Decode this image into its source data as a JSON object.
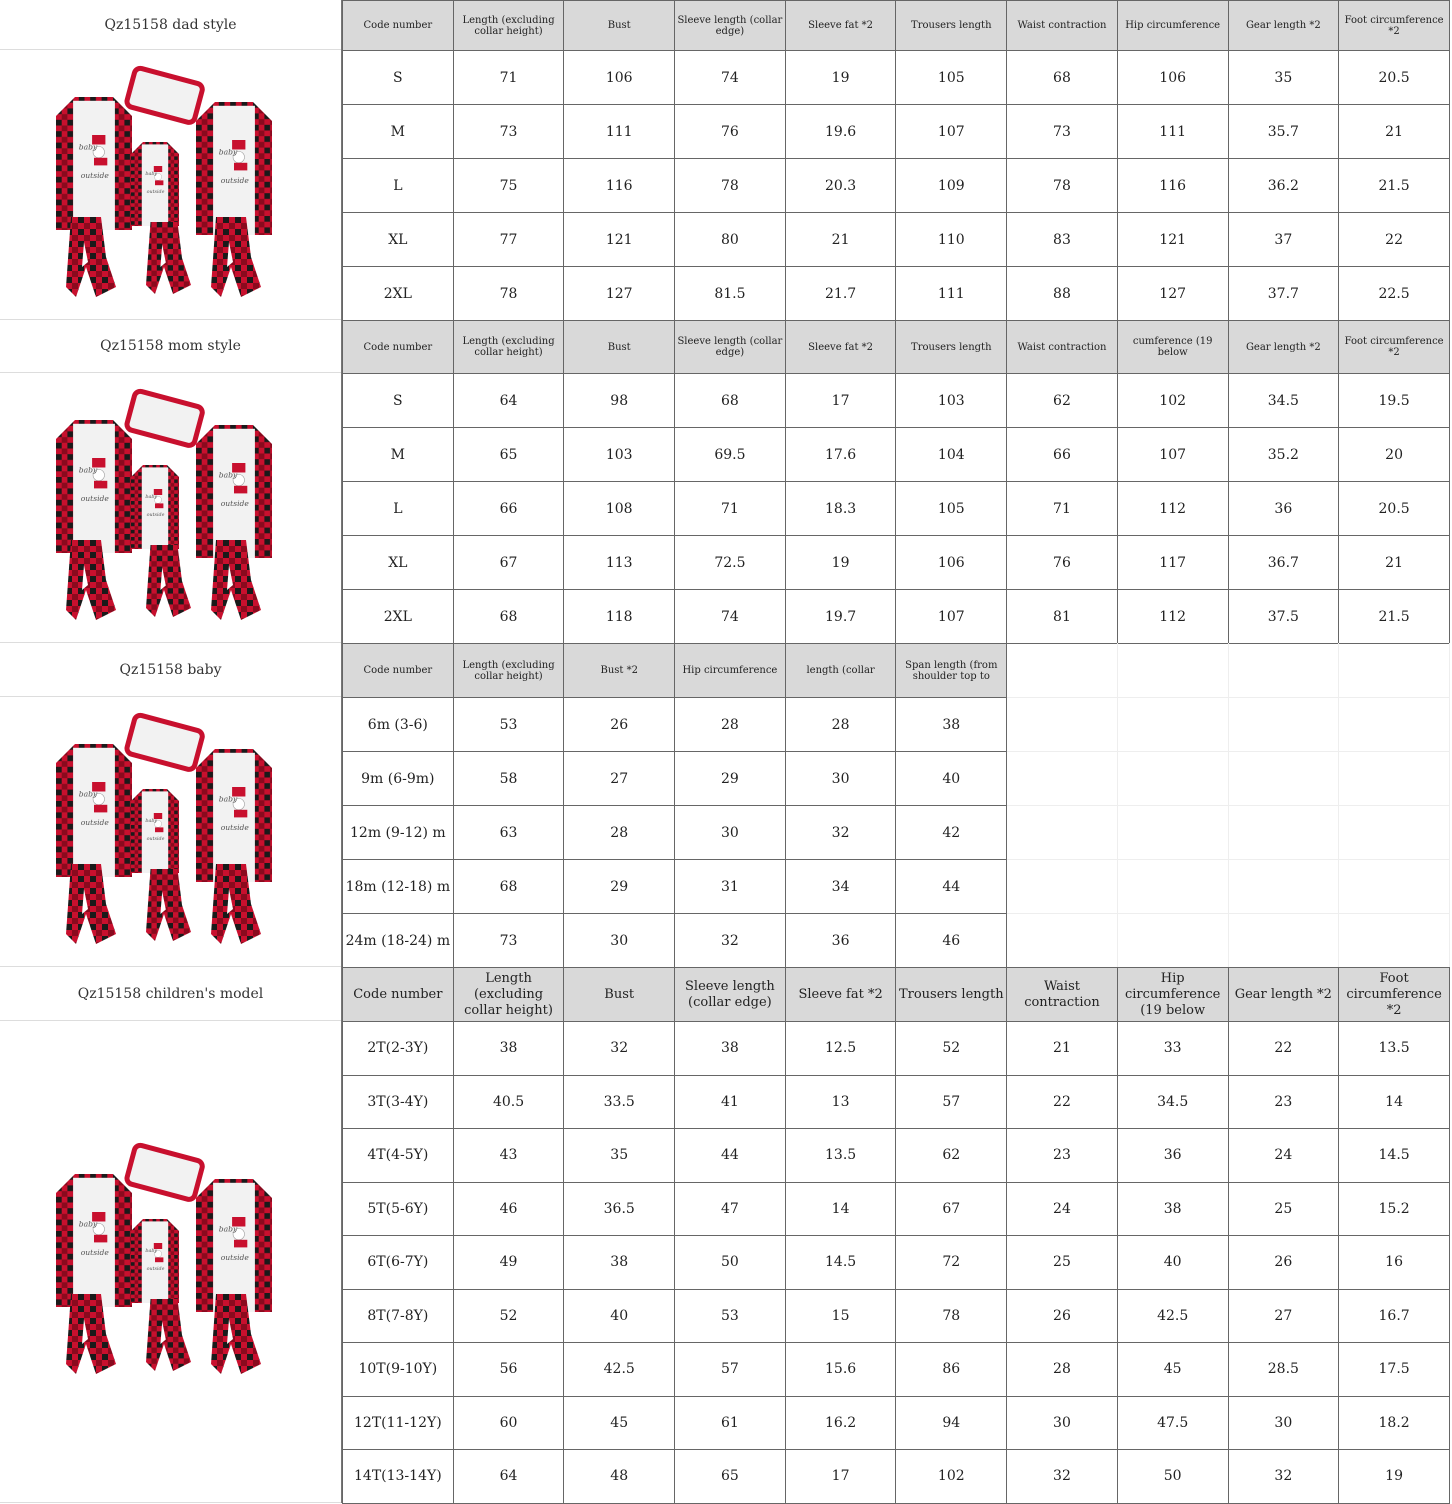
{
  "colors": {
    "header_bg": "#d9d9d9",
    "plaid_red": "#c8102e",
    "plaid_black": "#1a1a1a"
  },
  "sections": [
    {
      "title": "Qz15158 dad style",
      "image": "family-pajamas-image",
      "headers": [
        "Code number",
        "Length (excluding collar height)",
        "Bust",
        "Sleeve length (collar edge)",
        "Sleeve fat *2",
        "Trousers length",
        "Waist contraction",
        "Hip circumference",
        "Gear length *2",
        "Foot circumference *2"
      ],
      "rows": [
        [
          "S",
          "71",
          "106",
          "74",
          "19",
          "105",
          "68",
          "106",
          "35",
          "20.5"
        ],
        [
          "M",
          "73",
          "111",
          "76",
          "19.6",
          "107",
          "73",
          "111",
          "35.7",
          "21"
        ],
        [
          "L",
          "75",
          "116",
          "78",
          "20.3",
          "109",
          "78",
          "116",
          "36.2",
          "21.5"
        ],
        [
          "XL",
          "77",
          "121",
          "80",
          "21",
          "110",
          "83",
          "121",
          "37",
          "22"
        ],
        [
          "2XL",
          "78",
          "127",
          "81.5",
          "21.7",
          "111",
          "88",
          "127",
          "37.7",
          "22.5"
        ]
      ]
    },
    {
      "title": "Qz15158 mom style",
      "image": "family-pajamas-image",
      "headers": [
        "Code number",
        "Length (excluding collar height)",
        "Bust",
        "Sleeve length (collar edge)",
        "Sleeve fat *2",
        "Trousers length",
        "Waist contraction",
        "cumference (19 below",
        "Gear length *2",
        "Foot circumference *2"
      ],
      "rows": [
        [
          "S",
          "64",
          "98",
          "68",
          "17",
          "103",
          "62",
          "102",
          "34.5",
          "19.5"
        ],
        [
          "M",
          "65",
          "103",
          "69.5",
          "17.6",
          "104",
          "66",
          "107",
          "35.2",
          "20"
        ],
        [
          "L",
          "66",
          "108",
          "71",
          "18.3",
          "105",
          "71",
          "112",
          "36",
          "20.5"
        ],
        [
          "XL",
          "67",
          "113",
          "72.5",
          "19",
          "106",
          "76",
          "117",
          "36.7",
          "21"
        ],
        [
          "2XL",
          "68",
          "118",
          "74",
          "19.7",
          "107",
          "81",
          "112",
          "37.5",
          "21.5"
        ]
      ]
    },
    {
      "title": "Qz15158 baby",
      "image": "family-pajamas-image",
      "headers": [
        "Code number",
        "Length (excluding collar height)",
        "Bust *2",
        "Hip circumference",
        "length (collar",
        "Span length (from shoulder top to"
      ],
      "rows": [
        [
          "6m (3-6)",
          "53",
          "26",
          "28",
          "28",
          "38"
        ],
        [
          "9m (6-9m)",
          "58",
          "27",
          "29",
          "30",
          "40"
        ],
        [
          "12m (9-12) m",
          "63",
          "28",
          "30",
          "32",
          "42"
        ],
        [
          "18m (12-18) m",
          "68",
          "29",
          "31",
          "34",
          "44"
        ],
        [
          "24m (18-24) m",
          "73",
          "30",
          "32",
          "36",
          "46"
        ]
      ]
    },
    {
      "title": "Qz15158 children's model",
      "image": "family-pajamas-image",
      "headers": [
        "Code number",
        "Length (excluding collar height)",
        "Bust",
        "Sleeve length (collar edge)",
        "Sleeve fat *2",
        "Trousers length",
        "Waist contraction",
        "Hip circumference (19 below",
        "Gear length *2",
        "Foot circumference *2"
      ],
      "rows": [
        [
          "2T(2-3Y)",
          "38",
          "32",
          "38",
          "12.5",
          "52",
          "21",
          "33",
          "22",
          "13.5"
        ],
        [
          "3T(3-4Y)",
          "40.5",
          "33.5",
          "41",
          "13",
          "57",
          "22",
          "34.5",
          "23",
          "14"
        ],
        [
          "4T(4-5Y)",
          "43",
          "35",
          "44",
          "13.5",
          "62",
          "23",
          "36",
          "24",
          "14.5"
        ],
        [
          "5T(5-6Y)",
          "46",
          "36.5",
          "47",
          "14",
          "67",
          "24",
          "38",
          "25",
          "15.2"
        ],
        [
          "6T(6-7Y)",
          "49",
          "38",
          "50",
          "14.5",
          "72",
          "25",
          "40",
          "26",
          "16"
        ],
        [
          "8T(7-8Y)",
          "52",
          "40",
          "53",
          "15",
          "78",
          "26",
          "42.5",
          "27",
          "16.7"
        ],
        [
          "10T(9-10Y)",
          "56",
          "42.5",
          "57",
          "15.6",
          "86",
          "28",
          "45",
          "28.5",
          "17.5"
        ],
        [
          "12T(11-12Y)",
          "60",
          "45",
          "61",
          "16.2",
          "94",
          "30",
          "47.5",
          "30",
          "18.2"
        ],
        [
          "14T(13-14Y)",
          "64",
          "48",
          "65",
          "17",
          "102",
          "32",
          "50",
          "32",
          "19"
        ]
      ]
    }
  ]
}
